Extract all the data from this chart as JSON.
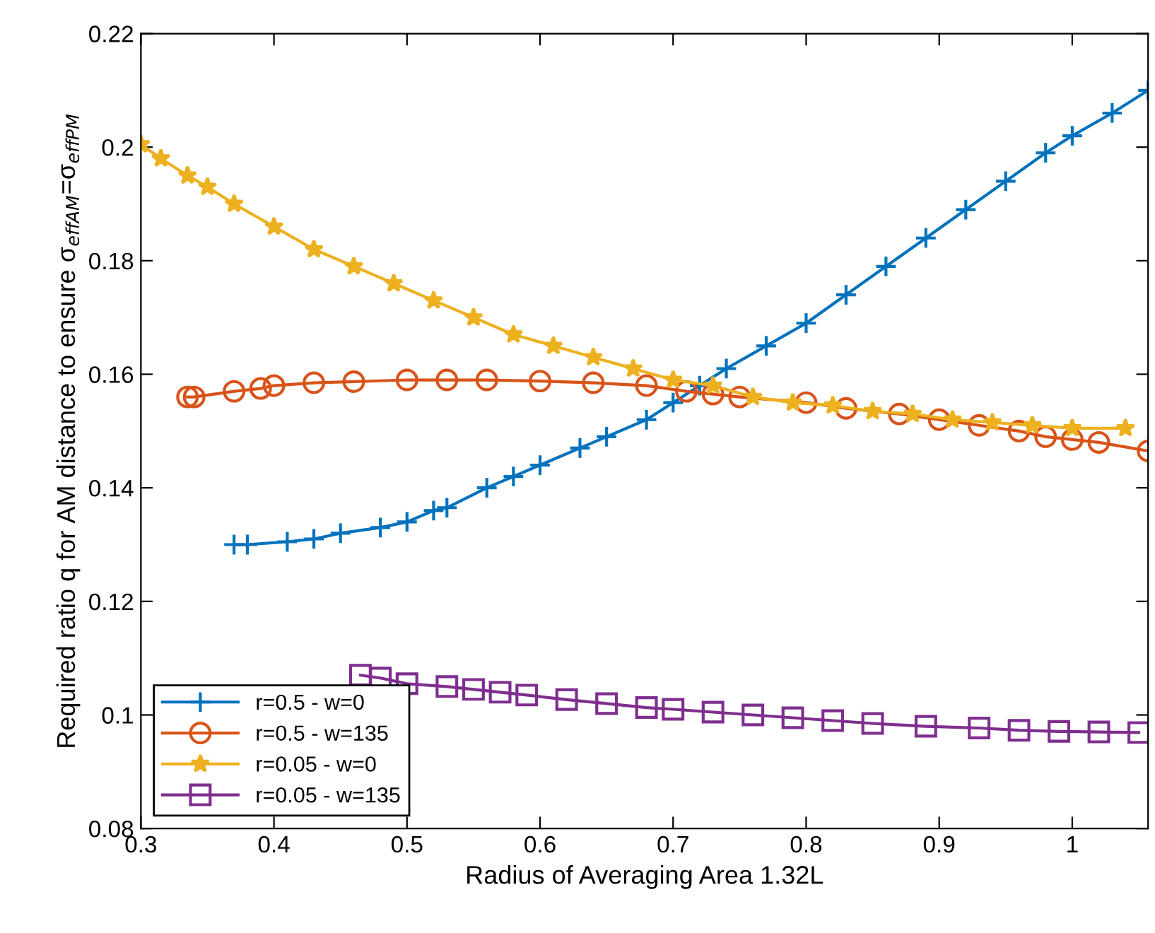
{
  "chart_data": {
    "type": "line",
    "xlabel": "Radius of Averaging Area 1.32L",
    "ylabel": "Required ratio q for AM distance to ensure σ$_{effAM}$=σ$_{effPM}$",
    "xlim": [
      0.3,
      1.057
    ],
    "ylim": [
      0.08,
      0.22
    ],
    "xticks": [
      0.3,
      0.4,
      0.5,
      0.6,
      0.7,
      0.8,
      0.9,
      1
    ],
    "yticks": [
      0.08,
      0.1,
      0.12,
      0.14,
      0.16,
      0.18,
      0.2,
      0.22
    ],
    "grid": false,
    "legend": "bottom left",
    "series": [
      {
        "name": "r=0.5 - w=0",
        "color": "#0072bd",
        "marker": "cross",
        "x": [
          0.37,
          0.38,
          0.41,
          0.43,
          0.45,
          0.48,
          0.5,
          0.52,
          0.53,
          0.56,
          0.58,
          0.6,
          0.63,
          0.65,
          0.68,
          0.7,
          0.72,
          0.74,
          0.77,
          0.8,
          0.83,
          0.86,
          0.89,
          0.92,
          0.95,
          0.98,
          1.0,
          1.03,
          1.057
        ],
        "values": [
          0.13,
          0.13,
          0.1305,
          0.131,
          0.132,
          0.133,
          0.134,
          0.136,
          0.1365,
          0.14,
          0.142,
          0.144,
          0.147,
          0.149,
          0.152,
          0.155,
          0.158,
          0.161,
          0.165,
          0.169,
          0.174,
          0.179,
          0.184,
          0.189,
          0.194,
          0.199,
          0.202,
          0.206,
          0.21
        ]
      },
      {
        "name": "r=0.5 - w=135",
        "color": "#d95319",
        "marker": "circle",
        "x": [
          0.335,
          0.34,
          0.37,
          0.39,
          0.4,
          0.43,
          0.46,
          0.5,
          0.53,
          0.56,
          0.6,
          0.64,
          0.68,
          0.71,
          0.73,
          0.75,
          0.8,
          0.83,
          0.87,
          0.9,
          0.93,
          0.96,
          0.98,
          1.0,
          1.02,
          1.057
        ],
        "values": [
          0.156,
          0.156,
          0.157,
          0.1575,
          0.158,
          0.1585,
          0.1587,
          0.159,
          0.159,
          0.159,
          0.1588,
          0.1585,
          0.158,
          0.157,
          0.1565,
          0.156,
          0.155,
          0.154,
          0.153,
          0.152,
          0.151,
          0.15,
          0.149,
          0.1485,
          0.148,
          0.1465
        ]
      },
      {
        "name": "r=0.05 - w=0",
        "color": "#edb120",
        "marker": "star",
        "x": [
          0.3,
          0.315,
          0.335,
          0.35,
          0.37,
          0.4,
          0.43,
          0.46,
          0.49,
          0.52,
          0.55,
          0.58,
          0.61,
          0.64,
          0.67,
          0.7,
          0.73,
          0.76,
          0.79,
          0.82,
          0.85,
          0.88,
          0.91,
          0.94,
          0.97,
          1.0,
          1.04
        ],
        "values": [
          0.2005,
          0.198,
          0.195,
          0.193,
          0.19,
          0.186,
          0.182,
          0.179,
          0.176,
          0.173,
          0.17,
          0.167,
          0.165,
          0.163,
          0.161,
          0.159,
          0.158,
          0.156,
          0.155,
          0.1545,
          0.1535,
          0.153,
          0.152,
          0.1515,
          0.151,
          0.1505,
          0.1505
        ]
      },
      {
        "name": "r=0.05 - w=135",
        "color": "#7e2f8e",
        "marker": "square",
        "x": [
          0.465,
          0.48,
          0.5,
          0.53,
          0.55,
          0.57,
          0.59,
          0.62,
          0.65,
          0.68,
          0.7,
          0.73,
          0.76,
          0.79,
          0.82,
          0.85,
          0.89,
          0.93,
          0.96,
          0.99,
          1.02,
          1.05
        ],
        "values": [
          0.107,
          0.1065,
          0.1055,
          0.105,
          0.1045,
          0.104,
          0.1035,
          0.1027,
          0.102,
          0.1013,
          0.101,
          0.1005,
          0.1,
          0.0995,
          0.099,
          0.0985,
          0.098,
          0.0977,
          0.0973,
          0.0971,
          0.097,
          0.0969
        ]
      }
    ]
  }
}
